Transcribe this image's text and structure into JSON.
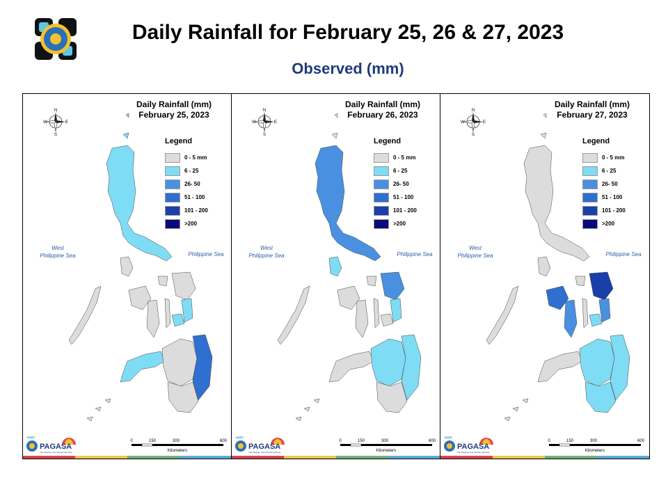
{
  "header": {
    "title": "Daily Rainfall for February 25, 26 & 27, 2023",
    "subtitle": "Observed (mm)"
  },
  "legend": {
    "title": "Legend",
    "items": [
      {
        "label": "0 - 5 mm",
        "color": "#dcdcdc"
      },
      {
        "label": "6 - 25",
        "color": "#7fdcf5"
      },
      {
        "label": "26- 50",
        "color": "#4a90e0"
      },
      {
        "label": "51 - 100",
        "color": "#2f6fd0"
      },
      {
        "label": "101 - 200",
        "color": "#1b3faa"
      },
      {
        "label": ">200",
        "color": "#0a0a7a"
      }
    ]
  },
  "panels": [
    {
      "title_line1": "Daily Rainfall (mm)",
      "title_line2": "February 25, 2023"
    },
    {
      "title_line1": "Daily Rainfall (mm)",
      "title_line2": "February 26, 2023"
    },
    {
      "title_line1": "Daily Rainfall (mm)",
      "title_line2": "February 27, 2023"
    }
  ],
  "seas": {
    "west_line1": "West",
    "west_line2": "Philippine Sea",
    "east": "Philippine Sea"
  },
  "compass": {
    "n": "N",
    "s": "S",
    "e": "E",
    "w": "W"
  },
  "scale": {
    "ticks": [
      "0",
      "150",
      "300",
      "600"
    ],
    "unit": "Kilometers"
  },
  "branding": {
    "agency": "PAGASA",
    "tagline": "The Weather and Climate Authority",
    "dost": "DOST"
  },
  "stripe_colors": [
    "#d9434b",
    "#e8c84a",
    "#6fb07a",
    "#5aa9d8"
  ]
}
